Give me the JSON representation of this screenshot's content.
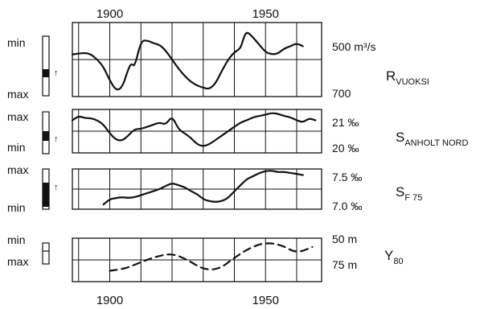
{
  "chart_data": [
    {
      "type": "line",
      "name_label": "R",
      "name_sub": "VUOKSI",
      "axis_right": {
        "top": "500 m³/s",
        "bottom": "700"
      },
      "axis_left": {
        "top": "min",
        "bottom": "max"
      },
      "x": [
        1888,
        1890,
        1892,
        1894,
        1896,
        1898,
        1900,
        1902,
        1904,
        1906,
        1907,
        1908,
        1910,
        1912,
        1914,
        1916,
        1918,
        1920,
        1922,
        1924,
        1926,
        1928,
        1930,
        1932,
        1934,
        1936,
        1938,
        1940,
        1942,
        1943,
        1944,
        1946,
        1948,
        1950,
        1952,
        1954,
        1956,
        1958,
        1960,
        1962
      ],
      "y": [
        0.43,
        0.42,
        0.41,
        0.43,
        0.5,
        0.6,
        0.78,
        0.92,
        0.88,
        0.62,
        0.55,
        0.6,
        0.25,
        0.24,
        0.28,
        0.3,
        0.38,
        0.5,
        0.62,
        0.72,
        0.8,
        0.85,
        0.88,
        0.9,
        0.82,
        0.65,
        0.5,
        0.4,
        0.35,
        0.2,
        0.12,
        0.2,
        0.3,
        0.4,
        0.43,
        0.42,
        0.35,
        0.32,
        0.28,
        0.32
      ]
    },
    {
      "type": "line",
      "name_label": "S",
      "name_sub": "ANHOLT NORD",
      "axis_right": {
        "top": "21 ‰",
        "bottom": "20 ‰"
      },
      "axis_left": {
        "top": "max",
        "bottom": "min"
      },
      "x": [
        1888,
        1890,
        1892,
        1894,
        1896,
        1898,
        1900,
        1902,
        1904,
        1906,
        1908,
        1910,
        1912,
        1914,
        1916,
        1918,
        1920,
        1922,
        1924,
        1926,
        1928,
        1930,
        1932,
        1934,
        1936,
        1938,
        1940,
        1942,
        1944,
        1946,
        1948,
        1950,
        1952,
        1954,
        1956,
        1958,
        1960,
        1962,
        1964,
        1966
      ],
      "y": [
        0.25,
        0.15,
        0.2,
        0.2,
        0.25,
        0.35,
        0.55,
        0.7,
        0.72,
        0.6,
        0.45,
        0.45,
        0.4,
        0.35,
        0.3,
        0.35,
        0.15,
        0.45,
        0.55,
        0.65,
        0.8,
        0.85,
        0.8,
        0.7,
        0.6,
        0.5,
        0.4,
        0.3,
        0.25,
        0.18,
        0.15,
        0.12,
        0.08,
        0.1,
        0.15,
        0.18,
        0.25,
        0.3,
        0.2,
        0.25
      ]
    },
    {
      "type": "line",
      "name_label": "S",
      "name_sub": "F 75",
      "axis_right": {
        "top": "7.5 ‰",
        "bottom": "7.0 ‰"
      },
      "axis_left": {
        "top": "max",
        "bottom": "min"
      },
      "x": [
        1898,
        1900,
        1902,
        1904,
        1906,
        1908,
        1910,
        1912,
        1914,
        1916,
        1918,
        1920,
        1922,
        1924,
        1926,
        1928,
        1930,
        1932,
        1934,
        1936,
        1938,
        1940,
        1942,
        1944,
        1946,
        1948,
        1950,
        1952,
        1954,
        1956,
        1958,
        1960,
        1962
      ],
      "y": [
        0.88,
        0.75,
        0.72,
        0.7,
        0.72,
        0.7,
        0.65,
        0.6,
        0.55,
        0.5,
        0.42,
        0.35,
        0.4,
        0.45,
        0.55,
        0.62,
        0.75,
        0.8,
        0.82,
        0.8,
        0.72,
        0.55,
        0.4,
        0.25,
        0.18,
        0.1,
        0.05,
        0.04,
        0.08,
        0.07,
        0.1,
        0.12,
        0.15
      ]
    },
    {
      "type": "line",
      "dashed": true,
      "name_label": "Y",
      "name_sub": "80",
      "axis_right": {
        "top": "50 m",
        "bottom": "75 m"
      },
      "axis_left": {
        "top": "min",
        "bottom": "max"
      },
      "x": [
        1900,
        1905,
        1910,
        1915,
        1920,
        1925,
        1930,
        1935,
        1940,
        1945,
        1950,
        1955,
        1960,
        1965
      ],
      "y": [
        0.75,
        0.7,
        0.55,
        0.42,
        0.35,
        0.5,
        0.72,
        0.72,
        0.45,
        0.22,
        0.1,
        0.15,
        0.35,
        0.2
      ]
    }
  ],
  "x_axis": {
    "ticks": [
      "1900",
      "1950"
    ],
    "ticks_year": [
      1900,
      1950
    ],
    "grid_years": [
      1890,
      1900,
      1910,
      1920,
      1930,
      1940,
      1950,
      1960
    ]
  },
  "x_range": [
    1888,
    1968
  ]
}
